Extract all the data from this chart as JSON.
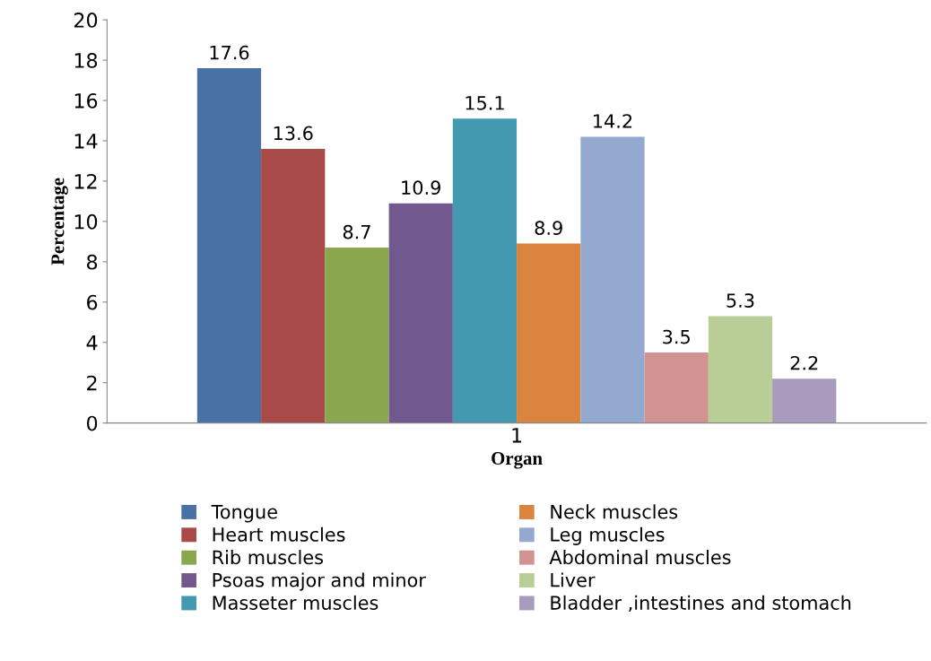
{
  "chart_data": {
    "type": "bar",
    "xlabel": "Organ",
    "ylabel": "Percentage",
    "categories": [
      "1"
    ],
    "series": [
      {
        "name": "Tongue",
        "color": "#4a71a6",
        "values": [
          17.6
        ]
      },
      {
        "name": "Heart muscles",
        "color": "#a84a47",
        "values": [
          13.6
        ]
      },
      {
        "name": "Rib muscles",
        "color": "#8aa64f",
        "values": [
          8.7
        ]
      },
      {
        "name": "Psoas major and minor",
        "color": "#71588f",
        "values": [
          10.9
        ]
      },
      {
        "name": "Masseter muscles",
        "color": "#4299b0",
        "values": [
          15.1
        ]
      },
      {
        "name": "Neck muscles",
        "color": "#db843d",
        "values": [
          8.9
        ]
      },
      {
        "name": "Leg muscles",
        "color": "#93a9cf",
        "values": [
          14.2
        ]
      },
      {
        "name": "Abdominal muscles",
        "color": "#d19392",
        "values": [
          3.5
        ]
      },
      {
        "name": "Liver",
        "color": "#b9cd96",
        "values": [
          5.3
        ]
      },
      {
        "name": "Bladder ,intestines and stomach",
        "color": "#a99bbd",
        "values": [
          2.2
        ]
      }
    ],
    "ylim": [
      0,
      20
    ],
    "yticks": [
      0,
      2,
      4,
      6,
      8,
      10,
      12,
      14,
      16,
      18,
      20
    ],
    "data_labels": true,
    "grid": false,
    "legend": "bottom"
  }
}
